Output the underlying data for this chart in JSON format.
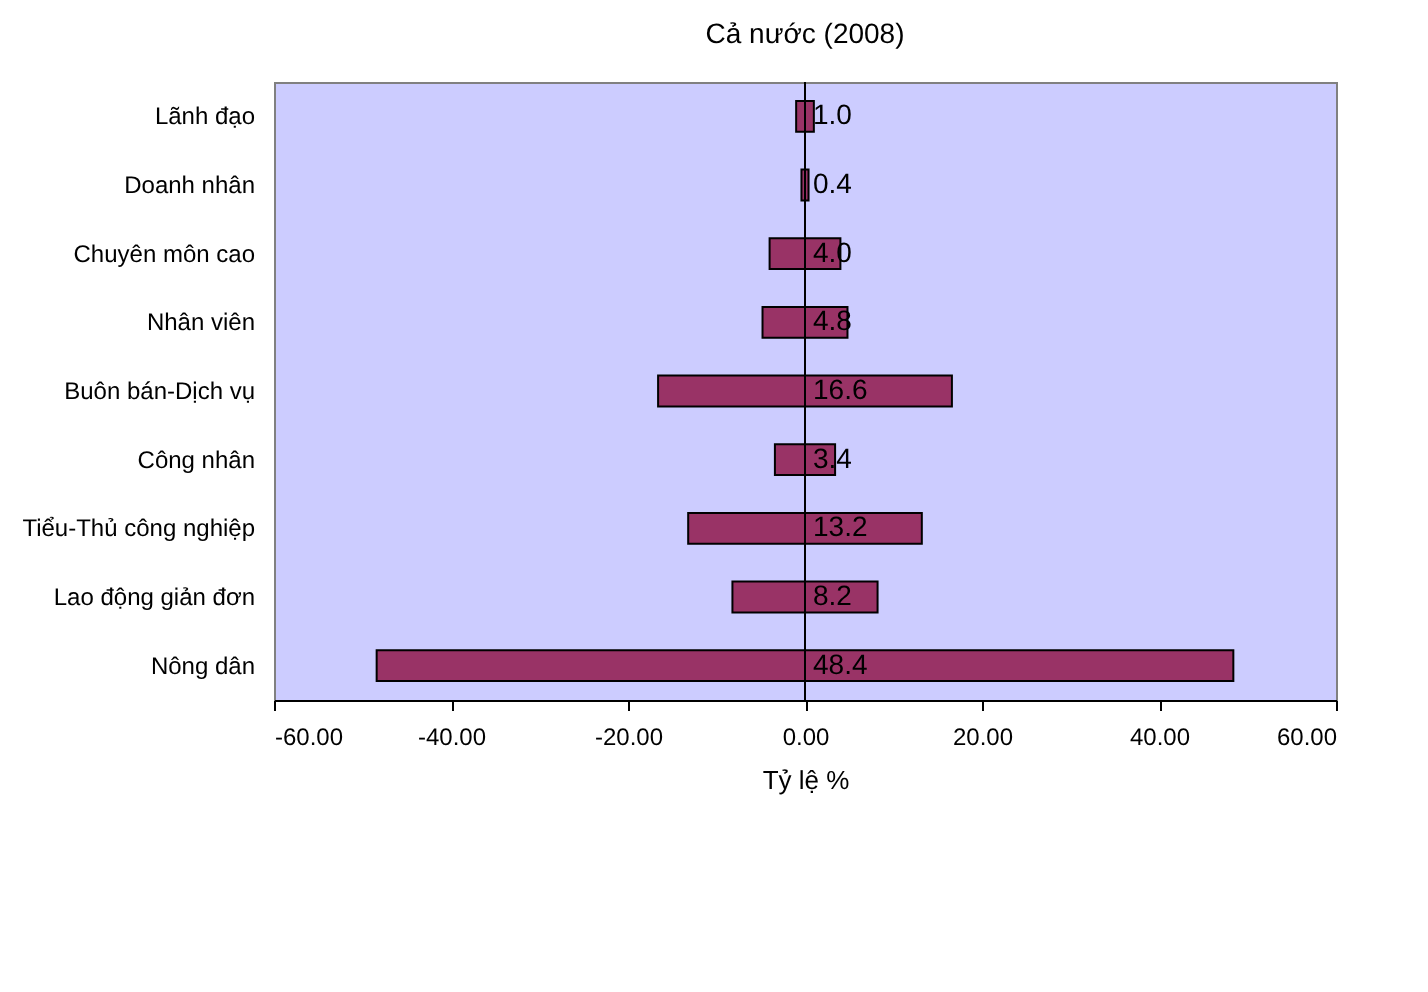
{
  "chart_data": {
    "type": "bar",
    "orientation": "horizontal",
    "stacked": true,
    "title": "Cả nước (2008)",
    "xlabel": "Tỷ lệ %",
    "categories": [
      "Lãnh đạo",
      "Doanh nhân",
      "Chuyên môn cao",
      "Nhân viên",
      "Buôn bán-Dịch vụ",
      "Công nhân",
      "Tiểu-Thủ công nghiệp",
      "Lao động giản đơn",
      "Nông dân"
    ],
    "series": [
      {
        "color": "#993366",
        "values": [
          -1.0,
          -0.4,
          -4.0,
          -4.8,
          -16.6,
          -3.4,
          -13.2,
          -8.2,
          -48.4
        ]
      },
      {
        "color": "#993366",
        "values": [
          1.0,
          0.4,
          4.0,
          4.8,
          16.6,
          3.4,
          13.2,
          8.2,
          48.4
        ],
        "value_labels": [
          "1.0",
          "0.4",
          "4.0",
          "4.8",
          "16.6",
          "3.4",
          "13.2",
          "8.2",
          "48.4"
        ]
      }
    ],
    "xlim": [
      -60,
      60
    ],
    "xticks": [
      {
        "value": -60,
        "label": "-60.00"
      },
      {
        "value": -40,
        "label": "-40.00"
      },
      {
        "value": -20,
        "label": "-20.00"
      },
      {
        "value": 0,
        "label": "0.00"
      },
      {
        "value": 20,
        "label": "20.00"
      },
      {
        "value": 40,
        "label": "40.00"
      },
      {
        "value": 60,
        "label": "60.00"
      }
    ],
    "ref_lines": [
      {
        "axis": "x",
        "value": 0,
        "color": "#000000"
      }
    ],
    "grid": false
  }
}
